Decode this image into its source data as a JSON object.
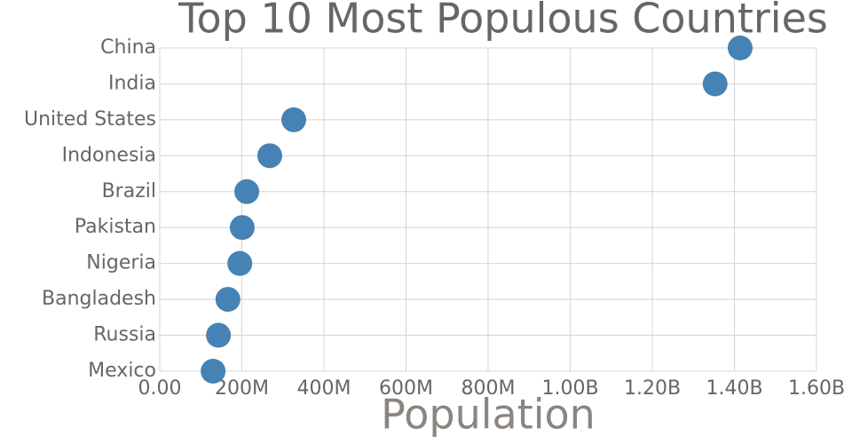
{
  "chart_data": {
    "type": "dot",
    "title": "Top 10 Most Populous Countries",
    "x_label": "Population",
    "categories": [
      "China",
      "India",
      "United States",
      "Indonesia",
      "Brazil",
      "Pakistan",
      "Nigeria",
      "Bangladesh",
      "Russia",
      "Mexico"
    ],
    "values": [
      1414000000,
      1353000000,
      326500000,
      268000000,
      212000000,
      201000000,
      195000000,
      166000000,
      143000000,
      130000000
    ],
    "color": "#4682b4",
    "xlim": [
      0,
      1600000000
    ],
    "xticks": [
      {
        "value": 0,
        "label": "0.00"
      },
      {
        "value": 200000000,
        "label": "200M"
      },
      {
        "value": 400000000,
        "label": "400M"
      },
      {
        "value": 600000000,
        "label": "600M"
      },
      {
        "value": 800000000,
        "label": "800M"
      },
      {
        "value": 1000000000,
        "label": "1.00B"
      },
      {
        "value": 1200000000,
        "label": "1.20B"
      },
      {
        "value": 1400000000,
        "label": "1.40B"
      },
      {
        "value": 1600000000,
        "label": "1.60B"
      }
    ],
    "grid": true
  }
}
